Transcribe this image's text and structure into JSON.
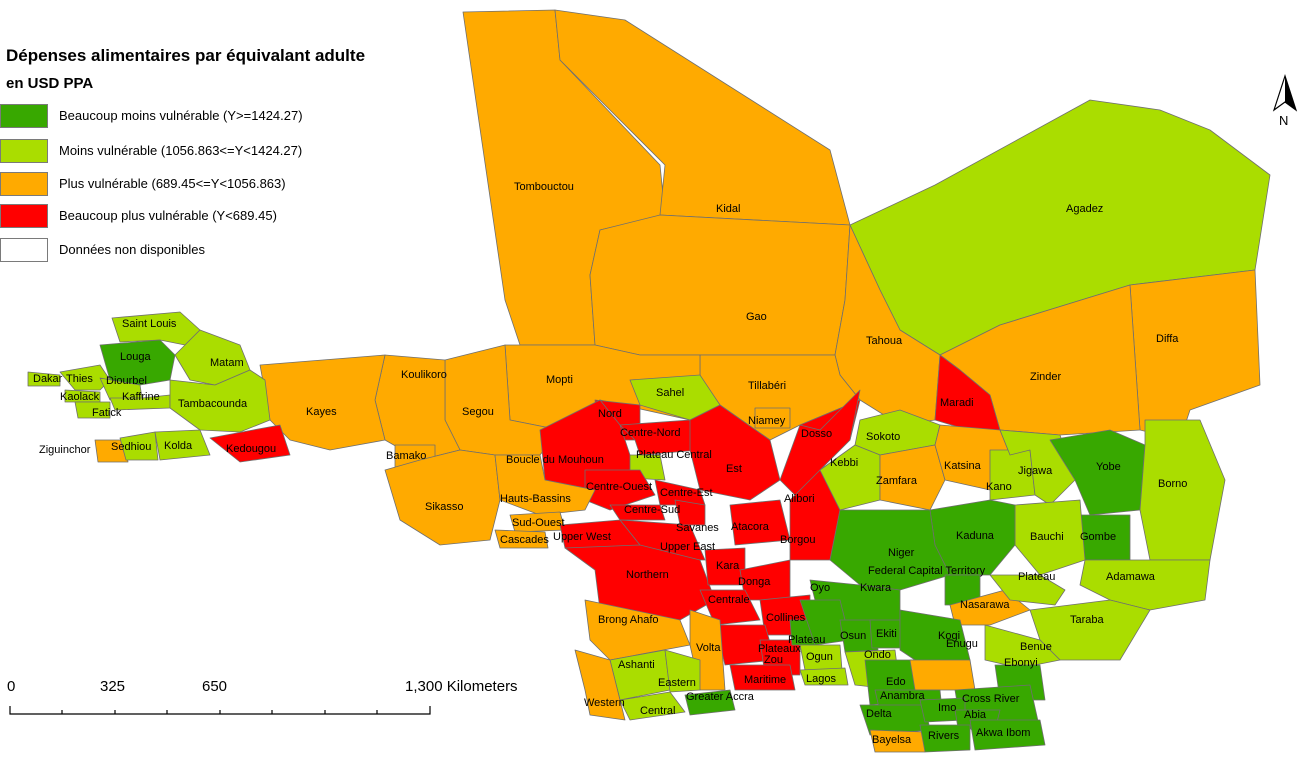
{
  "legend": {
    "title": "Dépenses alimentaires par équivalant adulte",
    "subtitle": "en USD PPA",
    "items": [
      {
        "label": "Beaucoup moins vulnérable (Y>=1424.27)",
        "color": "#38a800"
      },
      {
        "label": "Moins vulnérable (1056.863<=Y<1424.27)",
        "color": "#aadd00"
      },
      {
        "label": "Plus vulnérable  (689.45<=Y<1056.863)",
        "color": "#ffaa00"
      },
      {
        "label": "Beaucoup plus vulnérable (Y<689.45)",
        "color": "#ff0000"
      },
      {
        "label": "Données non disponibles",
        "color": "#ffffff"
      }
    ]
  },
  "scale_bar": {
    "labels": [
      "0",
      "325",
      "650",
      "1,300 Kilometers"
    ]
  },
  "north_arrow": {
    "label": "N"
  },
  "regions": [
    {
      "name": "Tombouctou",
      "class": 2
    },
    {
      "name": "Kidal",
      "class": 2
    },
    {
      "name": "Gao",
      "class": 2
    },
    {
      "name": "Agadez",
      "class": 1
    },
    {
      "name": "Tahoua",
      "class": 2
    },
    {
      "name": "Diffa",
      "class": 2
    },
    {
      "name": "Zinder",
      "class": 2
    },
    {
      "name": "Maradi",
      "class": 3
    },
    {
      "name": "Tillabéri",
      "class": 2
    },
    {
      "name": "Niamey",
      "class": 2
    },
    {
      "name": "Dosso",
      "class": 3
    },
    {
      "name": "Mopti",
      "class": 2
    },
    {
      "name": "Segou",
      "class": 2
    },
    {
      "name": "Koulikoro",
      "class": 2
    },
    {
      "name": "Kayes",
      "class": 2
    },
    {
      "name": "Bamako",
      "class": 2
    },
    {
      "name": "Sikasso",
      "class": 2
    },
    {
      "name": "Saint Louis",
      "class": 1
    },
    {
      "name": "Louga",
      "class": 0
    },
    {
      "name": "Matam",
      "class": 1
    },
    {
      "name": "Dakar",
      "class": 1
    },
    {
      "name": "Thies",
      "class": 1
    },
    {
      "name": "Diourbel",
      "class": 1
    },
    {
      "name": "Kaolack",
      "class": 1
    },
    {
      "name": "Kaffrine",
      "class": 1
    },
    {
      "name": "Fatick",
      "class": 1
    },
    {
      "name": "Tambacounda",
      "class": 1
    },
    {
      "name": "Ziguinchor",
      "class": 2
    },
    {
      "name": "Sedhiou",
      "class": 1
    },
    {
      "name": "Kolda",
      "class": 1
    },
    {
      "name": "Kedougou",
      "class": 3
    },
    {
      "name": "Sahel",
      "class": 1
    },
    {
      "name": "Nord",
      "class": 3
    },
    {
      "name": "Centre-Nord",
      "class": 3
    },
    {
      "name": "Boucle du Mouhoun",
      "class": 3
    },
    {
      "name": "Plateau Central",
      "class": 1
    },
    {
      "name": "Est",
      "class": 3
    },
    {
      "name": "Centre-Ouest",
      "class": 3
    },
    {
      "name": "Centre-Est",
      "class": 3
    },
    {
      "name": "Centre-Sud",
      "class": 3
    },
    {
      "name": "Hauts-Bassins",
      "class": 2
    },
    {
      "name": "Sud-Ouest",
      "class": 2
    },
    {
      "name": "Cascades",
      "class": 2
    },
    {
      "name": "Upper West",
      "class": 3
    },
    {
      "name": "Upper East",
      "class": 3
    },
    {
      "name": "Savanes",
      "class": 3
    },
    {
      "name": "Northern",
      "class": 3
    },
    {
      "name": "Atacora",
      "class": 3
    },
    {
      "name": "Alibori",
      "class": 3
    },
    {
      "name": "Borgou",
      "class": 3
    },
    {
      "name": "Kara",
      "class": 3
    },
    {
      "name": "Donga",
      "class": 3
    },
    {
      "name": "Centrale",
      "class": 3
    },
    {
      "name": "Collines",
      "class": 3
    },
    {
      "name": "Plateaux",
      "class": 3
    },
    {
      "name": "Zou",
      "class": 3
    },
    {
      "name": "Maritime",
      "class": 3
    },
    {
      "name": "Plateau",
      "class": 0
    },
    {
      "name": "Brong Ahafo",
      "class": 2
    },
    {
      "name": "Volta",
      "class": 2
    },
    {
      "name": "Ashanti",
      "class": 1
    },
    {
      "name": "Eastern",
      "class": 1
    },
    {
      "name": "Western",
      "class": 2
    },
    {
      "name": "Central",
      "class": 1
    },
    {
      "name": "Greater Accra",
      "class": 0
    },
    {
      "name": "Sokoto",
      "class": 1
    },
    {
      "name": "Kebbi",
      "class": 1
    },
    {
      "name": "Zamfara",
      "class": 2
    },
    {
      "name": "Katsina",
      "class": 2
    },
    {
      "name": "Kano",
      "class": 1
    },
    {
      "name": "Jigawa",
      "class": 1
    },
    {
      "name": "Yobe",
      "class": 0
    },
    {
      "name": "Borno",
      "class": 1
    },
    {
      "name": "Gombe",
      "class": 0
    },
    {
      "name": "Bauchi",
      "class": 1
    },
    {
      "name": "Kaduna",
      "class": 0
    },
    {
      "name": "Niger",
      "class": 0
    },
    {
      "name": "Federal Capital Territory",
      "class": 0
    },
    {
      "name": "Kwara",
      "class": 0
    },
    {
      "name": "Nasarawa",
      "class": 2
    },
    {
      "name": "Plateau",
      "class": 1
    },
    {
      "name": "Adamawa",
      "class": 1
    },
    {
      "name": "Taraba",
      "class": 1
    },
    {
      "name": "Benue",
      "class": 1
    },
    {
      "name": "Oyo",
      "class": 0
    },
    {
      "name": "Osun",
      "class": 0
    },
    {
      "name": "Ekiti",
      "class": 0
    },
    {
      "name": "Kogi",
      "class": 0
    },
    {
      "name": "Ogun",
      "class": 1
    },
    {
      "name": "Ondo",
      "class": 1
    },
    {
      "name": "Lagos",
      "class": 1
    },
    {
      "name": "Edo",
      "class": 0
    },
    {
      "name": "Enugu",
      "class": 2
    },
    {
      "name": "Ebonyi",
      "class": 0
    },
    {
      "name": "Anambra",
      "class": 0
    },
    {
      "name": "Cross River",
      "class": 0
    },
    {
      "name": "Delta",
      "class": 0
    },
    {
      "name": "Imo",
      "class": 0
    },
    {
      "name": "Abia",
      "class": 0
    },
    {
      "name": "Bayelsa",
      "class": 2
    },
    {
      "name": "Rivers",
      "class": 0
    },
    {
      "name": "Akwa Ibom",
      "class": 0
    }
  ]
}
